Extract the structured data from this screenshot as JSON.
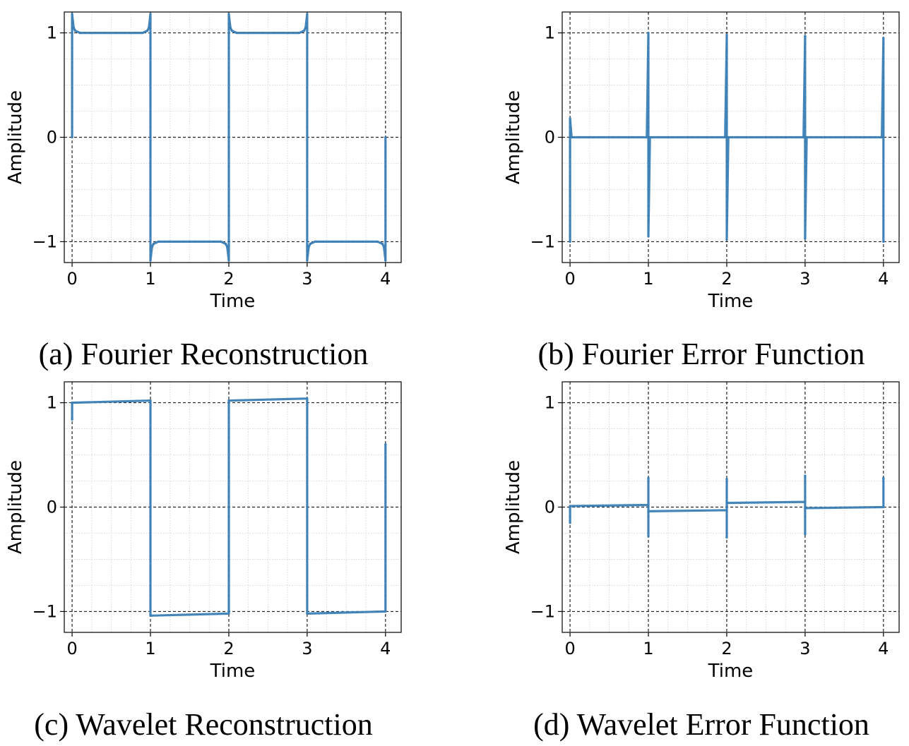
{
  "chart_data": [
    {
      "type": "line",
      "caption": "(a) Fourier Reconstruction",
      "xlabel": "Time",
      "ylabel": "Amplitude",
      "xlim": [
        -0.1,
        4.2
      ],
      "ylim": [
        -1.2,
        1.2
      ],
      "xticks": [
        0,
        1,
        2,
        3,
        4
      ],
      "xtick_labels": [
        "0",
        "1",
        "2",
        "3",
        "4"
      ],
      "yticks": [
        -1,
        0,
        1
      ],
      "ytick_labels": [
        "−1",
        "0",
        "1"
      ],
      "grid": true,
      "color": "#3b7fb6",
      "series": [
        {
          "x": [
            0,
            0,
            0.02,
            0.04,
            0.1,
            0.9,
            0.96,
            0.98,
            1,
            1,
            1.02,
            1.04,
            1.1,
            1.9,
            1.96,
            1.98,
            2,
            2,
            2.02,
            2.04,
            2.1,
            2.9,
            2.96,
            2.98,
            3,
            3,
            3.02,
            3.04,
            3.1,
            3.9,
            3.96,
            3.98,
            4,
            4
          ],
          "y": [
            0,
            1.18,
            1.05,
            1.02,
            1.0,
            1.0,
            1.02,
            1.05,
            1.18,
            -1.18,
            -1.05,
            -1.02,
            -1.0,
            -1.0,
            -1.02,
            -1.05,
            -1.18,
            1.18,
            1.05,
            1.02,
            1.0,
            1.0,
            1.02,
            1.05,
            1.18,
            -1.18,
            -1.05,
            -1.02,
            -1.0,
            -1.0,
            -1.02,
            -1.05,
            -1.18,
            0
          ]
        }
      ]
    },
    {
      "type": "line",
      "caption": "(b) Fourier Error Function",
      "xlabel": "Time",
      "ylabel": "Amplitude",
      "xlim": [
        -0.1,
        4.2
      ],
      "ylim": [
        -1.2,
        1.2
      ],
      "xticks": [
        0,
        1,
        2,
        3,
        4
      ],
      "xtick_labels": [
        "0",
        "1",
        "2",
        "3",
        "4"
      ],
      "yticks": [
        -1,
        0,
        1
      ],
      "ytick_labels": [
        "−1",
        "0",
        "1"
      ],
      "grid": true,
      "color": "#3b7fb6",
      "series": [
        {
          "x": [
            0,
            0,
            0.02,
            0.98,
            1,
            1,
            1.02,
            1.98,
            2,
            2,
            2.02,
            2.98,
            3,
            3,
            3.02,
            3.98,
            4,
            4
          ],
          "y": [
            -1.0,
            0.18,
            0.0,
            0.0,
            1.0,
            -0.95,
            0.0,
            0.0,
            0.98,
            -0.98,
            0.0,
            0.0,
            0.97,
            -0.97,
            0.0,
            0.0,
            0.95,
            -1.0
          ]
        }
      ]
    },
    {
      "type": "line",
      "caption": "(c) Wavelet Reconstruction",
      "xlabel": "Time",
      "ylabel": "Amplitude",
      "xlim": [
        -0.1,
        4.2
      ],
      "ylim": [
        -1.2,
        1.2
      ],
      "xticks": [
        0,
        1,
        2,
        3,
        4
      ],
      "xtick_labels": [
        "0",
        "1",
        "2",
        "3",
        "4"
      ],
      "yticks": [
        -1,
        0,
        1
      ],
      "ytick_labels": [
        "−1",
        "0",
        "1"
      ],
      "grid": true,
      "color": "#3b7fb6",
      "series": [
        {
          "x": [
            0,
            0,
            1,
            1,
            2,
            2,
            3,
            3,
            4,
            4
          ],
          "y": [
            0.84,
            1.0,
            1.02,
            -1.04,
            -1.02,
            1.02,
            1.04,
            -1.02,
            -1.0,
            0.6
          ]
        }
      ]
    },
    {
      "type": "line",
      "caption": "(d) Wavelet Error Function",
      "xlabel": "Time",
      "ylabel": "Amplitude",
      "xlim": [
        -0.1,
        4.2
      ],
      "ylim": [
        -1.2,
        1.2
      ],
      "xticks": [
        0,
        1,
        2,
        3,
        4
      ],
      "xtick_labels": [
        "0",
        "1",
        "2",
        "3",
        "4"
      ],
      "yticks": [
        -1,
        0,
        1
      ],
      "ytick_labels": [
        "−1",
        "0",
        "1"
      ],
      "grid": true,
      "color": "#3b7fb6",
      "series": [
        {
          "x": [
            0,
            0,
            1,
            1,
            1,
            1,
            2,
            2,
            2,
            2,
            3,
            3,
            3,
            3,
            4,
            4
          ],
          "y": [
            -0.15,
            0.01,
            0.02,
            0.28,
            -0.28,
            -0.04,
            -0.03,
            0.27,
            -0.29,
            0.04,
            0.05,
            0.3,
            -0.26,
            -0.01,
            0.0,
            0.28
          ]
        }
      ]
    }
  ]
}
